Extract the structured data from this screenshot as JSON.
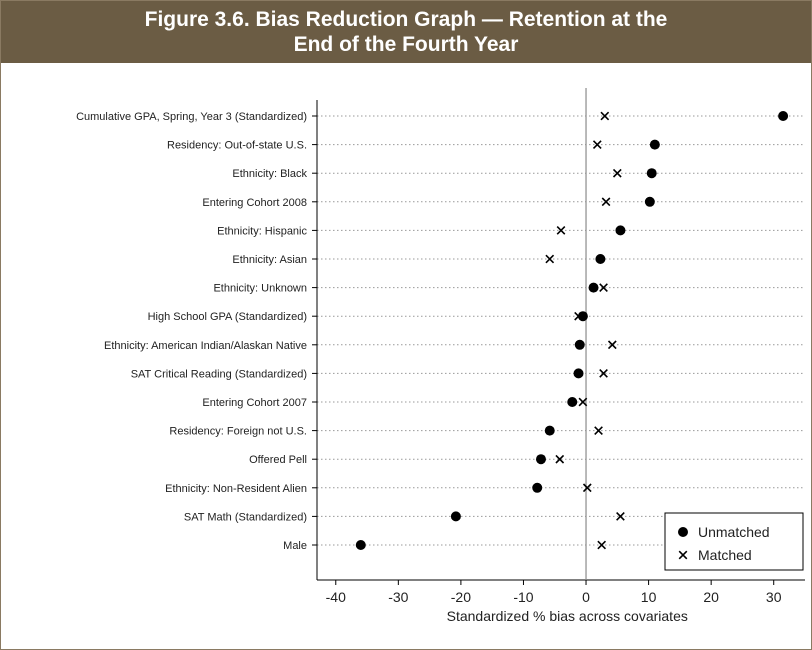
{
  "figure": {
    "title_line1": "Figure 3.6. Bias Reduction Graph — Retention at the",
    "title_line2": "End of the Fourth Year"
  },
  "colors": {
    "title_bar": "#6b5c44",
    "marker": "#000000",
    "gridline": "#999999"
  },
  "chart_data": {
    "type": "scatter",
    "title": "Figure 3.6. Bias Reduction Graph — Retention at the End of the Fourth Year",
    "xlabel": "Standardized % bias across covariates",
    "ylabel": "",
    "xlim": [
      -43,
      35
    ],
    "xticks": [
      -40,
      -30,
      -20,
      -10,
      0,
      10,
      20,
      30
    ],
    "grid": "horizontal-dotted",
    "zero_line": true,
    "legend_position": "bottom-right",
    "categories": [
      "Cumulative GPA, Spring, Year 3 (Standardized)",
      "Residency: Out-of-state U.S.",
      "Ethnicity: Black",
      "Entering Cohort 2008",
      "Ethnicity: Hispanic",
      "Ethnicity: Asian",
      "Ethnicity: Unknown",
      "High School GPA (Standardized)",
      "Ethnicity: American Indian/Alaskan Native",
      "SAT Critical Reading (Standardized)",
      "Entering Cohort 2007",
      "Residency: Foreign not U.S.",
      "Offered Pell",
      "Ethnicity: Non-Resident Alien",
      "SAT Math (Standardized)",
      "Male"
    ],
    "series": [
      {
        "name": "Unmatched",
        "marker": "circle",
        "values": [
          31.5,
          11,
          10.5,
          10.2,
          5.5,
          2.3,
          1.2,
          -0.5,
          -1,
          -1.2,
          -2.2,
          -5.8,
          -7.2,
          -7.8,
          -20.8,
          -36
        ]
      },
      {
        "name": "Matched",
        "marker": "x",
        "values": [
          3,
          1.8,
          5,
          3.2,
          -4,
          -5.8,
          2.8,
          -1.2,
          4.2,
          2.8,
          -0.5,
          2,
          -4.2,
          0.2,
          5.5,
          2.5
        ]
      }
    ]
  }
}
